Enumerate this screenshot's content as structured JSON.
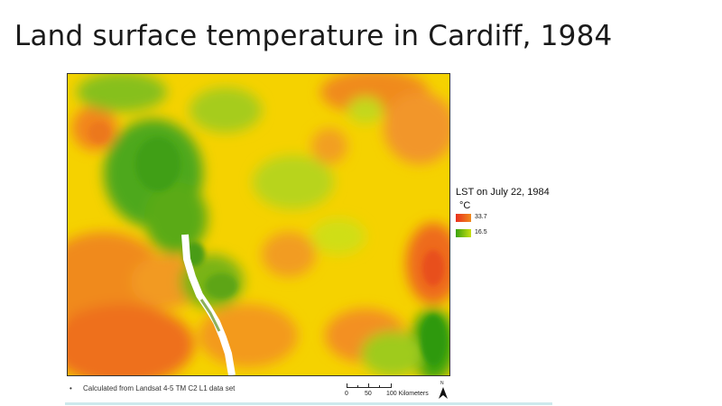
{
  "slide": {
    "title": "Land surface temperature in Cardiff, 1984"
  },
  "map": {
    "description_colors": {
      "hot": "#e8301e",
      "warm": "#f08a1d",
      "mid": "#f6d400",
      "cool": "#c8e013",
      "cold": "#3aa20c",
      "water": "#ffffff"
    }
  },
  "legend": {
    "title": "LST on July 22, 1984",
    "unit": "°C",
    "high_label": "33.7",
    "low_label": "16.5"
  },
  "note": {
    "bullet": "•",
    "text": "Calculated from Landsat 4-5 TM C2 L1 data set"
  },
  "scale_bar": {
    "labels": [
      "0",
      "50",
      "100 Kilometers"
    ]
  },
  "north_arrow": {
    "letter": "N",
    "icon": "north-arrow-icon"
  }
}
